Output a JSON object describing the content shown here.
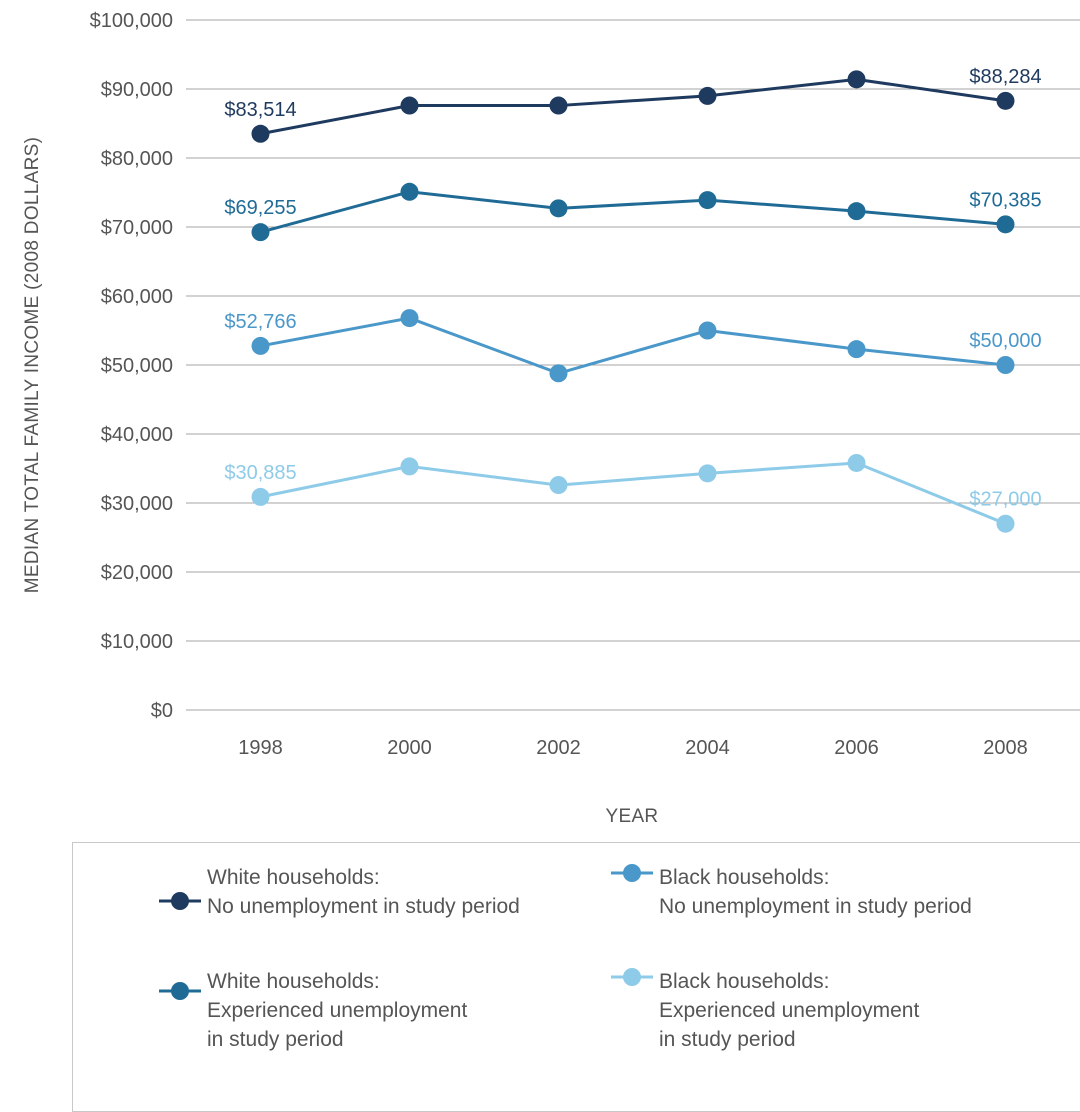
{
  "chart_data": {
    "type": "line",
    "x": [
      "1998",
      "2000",
      "2002",
      "2004",
      "2006",
      "2008"
    ],
    "xlabel": "YEAR",
    "ylabel": "MEDIAN TOTAL FAMILY INCOME (2008 DOLLARS)",
    "ylim": [
      0,
      100000
    ],
    "yticks": [
      "$0",
      "$10,000",
      "$20,000",
      "$30,000",
      "$40,000",
      "$50,000",
      "$60,000",
      "$70,000",
      "$80,000",
      "$90,000",
      "$100,000"
    ],
    "grid": true,
    "legend_position": "bottom",
    "series": [
      {
        "name_lines": [
          "White households:",
          "No unemployment in study period"
        ],
        "color": "#1f3a5f",
        "values": [
          83514,
          87600,
          87600,
          89000,
          91400,
          88284
        ],
        "labels": [
          {
            "index": 0,
            "text": "$83,514"
          },
          {
            "index": 5,
            "text": "$88,284"
          }
        ]
      },
      {
        "name_lines": [
          "White households:",
          "Experienced unemployment",
          "in study period"
        ],
        "color": "#1f6b96",
        "values": [
          69255,
          75100,
          72700,
          73900,
          72300,
          70385
        ],
        "labels": [
          {
            "index": 0,
            "text": "$69,255"
          },
          {
            "index": 5,
            "text": "$70,385"
          }
        ]
      },
      {
        "name_lines": [
          "Black households:",
          "No unemployment in study period"
        ],
        "color": "#4a97c9",
        "values": [
          52766,
          56800,
          48800,
          55000,
          52300,
          50000
        ],
        "labels": [
          {
            "index": 0,
            "text": "$52,766"
          },
          {
            "index": 5,
            "text": "$50,000"
          }
        ]
      },
      {
        "name_lines": [
          "Black households:",
          "Experienced unemployment",
          "in study period"
        ],
        "color": "#8ecbe8",
        "values": [
          30885,
          35300,
          32600,
          34300,
          35800,
          27000
        ],
        "labels": [
          {
            "index": 0,
            "text": "$30,885"
          },
          {
            "index": 5,
            "text": "$27,000"
          }
        ]
      }
    ]
  }
}
